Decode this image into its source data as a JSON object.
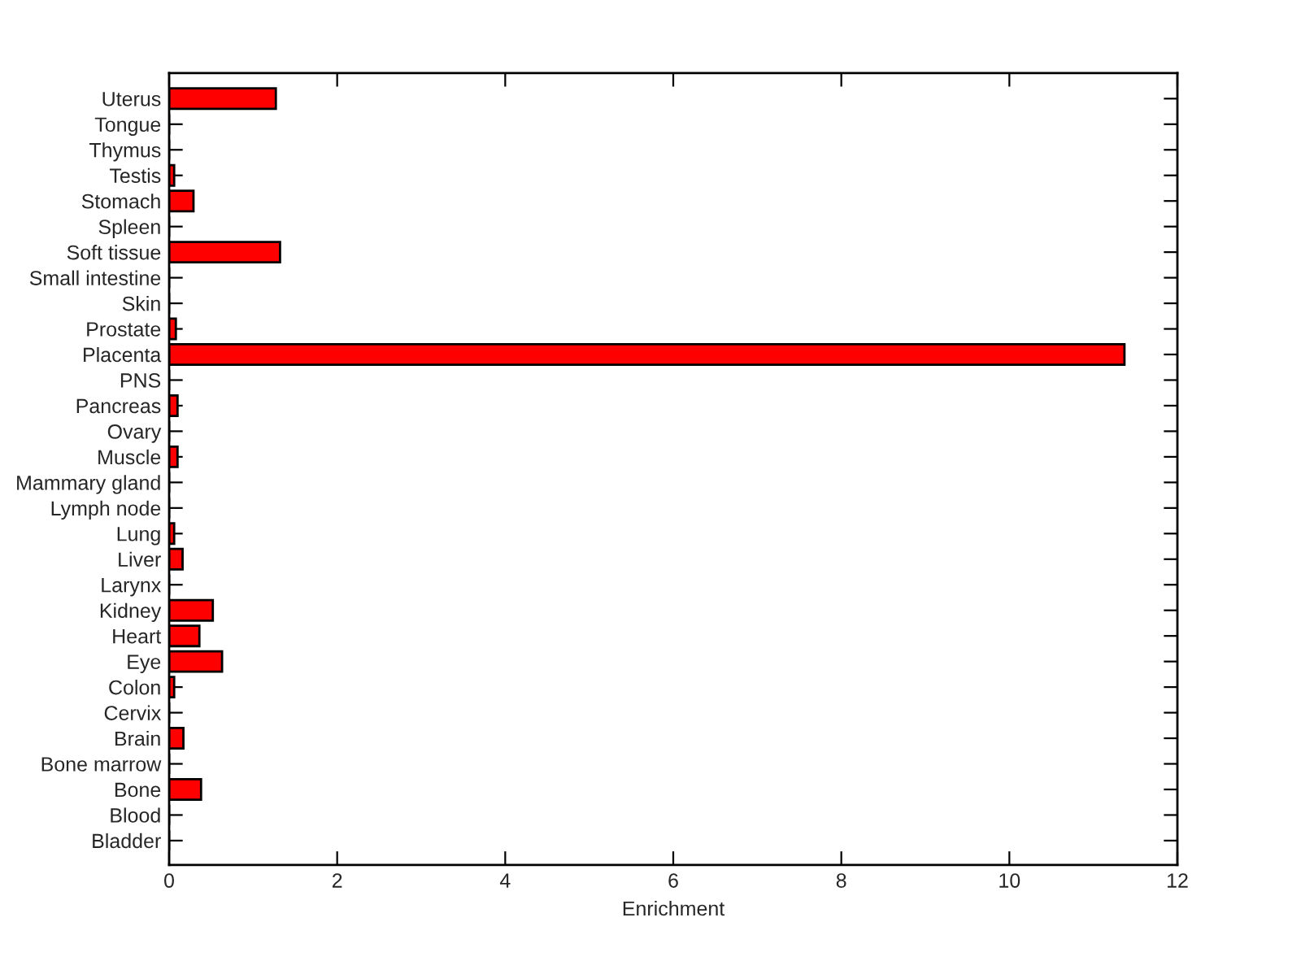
{
  "chart_data": {
    "type": "bar",
    "orientation": "horizontal",
    "xlabel": "Enrichment",
    "categories": [
      "Uterus",
      "Tongue",
      "Thymus",
      "Testis",
      "Stomach",
      "Spleen",
      "Soft tissue",
      "Small intestine",
      "Skin",
      "Prostate",
      "Placenta",
      "PNS",
      "Pancreas",
      "Ovary",
      "Muscle",
      "Mammary gland",
      "Lymph node",
      "Lung",
      "Liver",
      "Larynx",
      "Kidney",
      "Heart",
      "Eye",
      "Colon",
      "Cervix",
      "Brain",
      "Bone marrow",
      "Bone",
      "Blood",
      "Bladder"
    ],
    "values": [
      1.27,
      0,
      0,
      0.06,
      0.29,
      0,
      1.32,
      0,
      0,
      0.08,
      11.37,
      0,
      0.1,
      0,
      0.1,
      0,
      0,
      0.06,
      0.16,
      0,
      0.52,
      0.36,
      0.63,
      0.06,
      0,
      0.17,
      0,
      0.38,
      0,
      0
    ],
    "color": "#ff0000",
    "xlim": [
      0,
      12
    ],
    "xticks": [
      0,
      2,
      4,
      6,
      8,
      10,
      12
    ],
    "grid": false,
    "legend": false
  }
}
